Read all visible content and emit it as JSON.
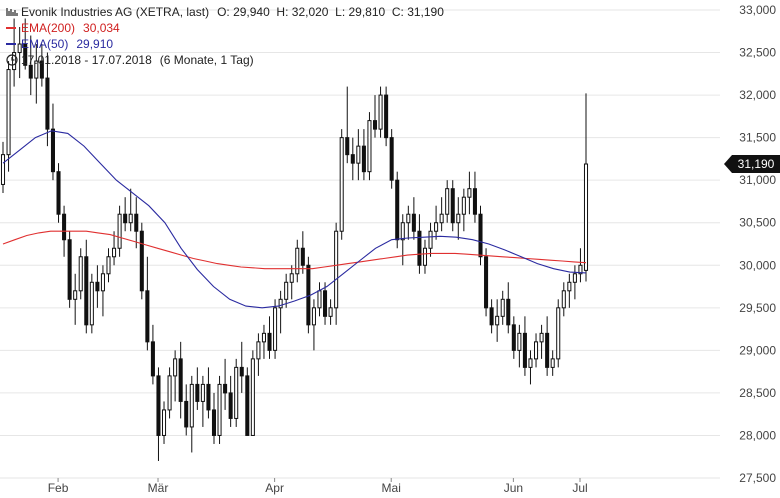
{
  "header": {
    "title": "Evonik Industries AG (XETRA, last)",
    "ohlc": "O: 29,940  H: 32,020  L: 29,810  C: 31,190",
    "ema200_label": "EMA(200)",
    "ema200_value": "30,034",
    "ema50_label": "EMA(50)",
    "ema50_value": "29,910",
    "period": "17.01.2018 - 17.07.2018",
    "period_note": "(6 Monate, 1 Tag)"
  },
  "colors": {
    "ema200": "#e03030",
    "ema50": "#2a2aa0",
    "candle": "#111111",
    "grid": "#e6e6e6",
    "price_badge": "#111111"
  },
  "chart_data": {
    "type": "candlestick",
    "title": "Evonik Industries AG (XETRA, last)",
    "y_ticks": [
      "27,500",
      "28,000",
      "28,500",
      "29,000",
      "29,500",
      "30,000",
      "30,500",
      "31,000",
      "31,500",
      "32,000",
      "32,500",
      "33,000"
    ],
    "x_ticks": [
      "Feb",
      "Mär",
      "Apr",
      "Mai",
      "Jun",
      "Jul"
    ],
    "ylim": [
      27.5,
      33.0
    ],
    "last_price_label": "31,190",
    "last_price": 31.19,
    "candles": [
      [
        30.95,
        31.45,
        30.85,
        31.3
      ],
      [
        31.3,
        32.4,
        31.1,
        32.3
      ],
      [
        32.3,
        32.9,
        32.1,
        32.5
      ],
      [
        32.5,
        32.8,
        32.2,
        32.6
      ],
      [
        32.6,
        32.9,
        32.3,
        32.35
      ],
      [
        32.35,
        32.7,
        32.0,
        32.2
      ],
      [
        32.2,
        32.6,
        31.9,
        32.4
      ],
      [
        32.4,
        32.6,
        32.1,
        32.2
      ],
      [
        32.2,
        32.5,
        31.4,
        31.6
      ],
      [
        31.6,
        31.9,
        31.0,
        31.1
      ],
      [
        31.1,
        31.2,
        30.5,
        30.6
      ],
      [
        30.6,
        30.7,
        30.1,
        30.3
      ],
      [
        30.3,
        30.4,
        29.5,
        29.6
      ],
      [
        29.6,
        29.9,
        29.3,
        29.7
      ],
      [
        29.7,
        30.2,
        29.6,
        30.1
      ],
      [
        30.1,
        30.3,
        29.2,
        29.3
      ],
      [
        29.3,
        29.9,
        29.2,
        29.8
      ],
      [
        29.8,
        30.0,
        29.5,
        29.7
      ],
      [
        29.7,
        30.0,
        29.4,
        29.9
      ],
      [
        29.9,
        30.2,
        29.8,
        30.1
      ],
      [
        30.1,
        30.4,
        30.0,
        30.2
      ],
      [
        30.2,
        30.7,
        30.1,
        30.6
      ],
      [
        30.6,
        30.8,
        30.4,
        30.5
      ],
      [
        30.5,
        30.9,
        30.4,
        30.6
      ],
      [
        30.6,
        30.8,
        30.2,
        30.4
      ],
      [
        30.4,
        30.5,
        29.6,
        29.7
      ],
      [
        29.7,
        30.1,
        29.0,
        29.1
      ],
      [
        29.1,
        29.3,
        28.6,
        28.7
      ],
      [
        28.7,
        28.8,
        27.7,
        28.0
      ],
      [
        28.0,
        28.4,
        27.9,
        28.3
      ],
      [
        28.3,
        28.8,
        28.2,
        28.7
      ],
      [
        28.7,
        29.0,
        28.4,
        28.9
      ],
      [
        28.9,
        29.1,
        28.2,
        28.4
      ],
      [
        28.4,
        28.6,
        28.0,
        28.1
      ],
      [
        28.1,
        28.7,
        27.8,
        28.6
      ],
      [
        28.6,
        28.8,
        28.3,
        28.4
      ],
      [
        28.4,
        28.7,
        28.1,
        28.6
      ],
      [
        28.6,
        28.8,
        28.2,
        28.3
      ],
      [
        28.3,
        28.5,
        27.9,
        28.0
      ],
      [
        28.0,
        28.7,
        27.9,
        28.6
      ],
      [
        28.6,
        28.9,
        28.3,
        28.5
      ],
      [
        28.5,
        28.7,
        28.1,
        28.2
      ],
      [
        28.2,
        28.9,
        28.1,
        28.8
      ],
      [
        28.8,
        29.1,
        28.5,
        28.7
      ],
      [
        28.7,
        28.8,
        28.0,
        28.0
      ],
      [
        28.0,
        29.0,
        28.0,
        28.9
      ],
      [
        28.9,
        29.2,
        28.7,
        29.1
      ],
      [
        29.1,
        29.3,
        28.9,
        29.2
      ],
      [
        29.2,
        29.4,
        28.9,
        29.0
      ],
      [
        29.0,
        29.6,
        28.9,
        29.5
      ],
      [
        29.5,
        29.7,
        29.2,
        29.6
      ],
      [
        29.6,
        29.9,
        29.5,
        29.8
      ],
      [
        29.8,
        30.0,
        29.6,
        29.9
      ],
      [
        29.9,
        30.3,
        29.8,
        30.2
      ],
      [
        30.2,
        30.4,
        29.9,
        30.0
      ],
      [
        30.0,
        30.1,
        29.2,
        29.3
      ],
      [
        29.3,
        29.6,
        29.0,
        29.5
      ],
      [
        29.5,
        29.8,
        29.4,
        29.7
      ],
      [
        29.7,
        29.8,
        29.3,
        29.4
      ],
      [
        29.4,
        29.6,
        29.3,
        29.5
      ],
      [
        29.5,
        30.5,
        29.3,
        30.4
      ],
      [
        30.4,
        31.6,
        30.3,
        31.5
      ],
      [
        31.5,
        32.1,
        31.2,
        31.3
      ],
      [
        31.3,
        31.5,
        31.0,
        31.2
      ],
      [
        31.2,
        31.6,
        31.0,
        31.4
      ],
      [
        31.4,
        31.6,
        31.0,
        31.1
      ],
      [
        31.1,
        31.8,
        31.0,
        31.7
      ],
      [
        31.7,
        32.0,
        31.5,
        31.6
      ],
      [
        31.6,
        32.1,
        31.5,
        32.0
      ],
      [
        32.0,
        32.1,
        31.4,
        31.5
      ],
      [
        31.5,
        31.6,
        30.9,
        31.0
      ],
      [
        31.0,
        31.1,
        30.2,
        30.3
      ],
      [
        30.3,
        30.6,
        30.0,
        30.5
      ],
      [
        30.5,
        30.7,
        30.3,
        30.6
      ],
      [
        30.6,
        30.8,
        30.3,
        30.4
      ],
      [
        30.4,
        30.6,
        29.9,
        30.0
      ],
      [
        30.0,
        30.3,
        29.9,
        30.2
      ],
      [
        30.2,
        30.5,
        30.1,
        30.4
      ],
      [
        30.4,
        30.7,
        30.3,
        30.5
      ],
      [
        30.5,
        30.8,
        30.4,
        30.6
      ],
      [
        30.6,
        31.0,
        30.5,
        30.9
      ],
      [
        30.9,
        31.0,
        30.4,
        30.5
      ],
      [
        30.5,
        30.8,
        30.3,
        30.6
      ],
      [
        30.6,
        30.9,
        30.4,
        30.8
      ],
      [
        30.8,
        31.1,
        30.6,
        30.9
      ],
      [
        30.9,
        31.1,
        30.5,
        30.6
      ],
      [
        30.6,
        30.7,
        30.0,
        30.1
      ],
      [
        30.1,
        30.2,
        29.4,
        29.5
      ],
      [
        29.5,
        29.6,
        29.2,
        29.3
      ],
      [
        29.3,
        29.6,
        29.1,
        29.4
      ],
      [
        29.4,
        29.7,
        29.3,
        29.6
      ],
      [
        29.6,
        29.8,
        29.2,
        29.3
      ],
      [
        29.3,
        29.4,
        28.9,
        29.0
      ],
      [
        29.0,
        29.3,
        28.8,
        29.2
      ],
      [
        29.2,
        29.4,
        28.7,
        28.8
      ],
      [
        28.8,
        29.0,
        28.6,
        28.9
      ],
      [
        28.9,
        29.2,
        28.8,
        29.1
      ],
      [
        29.1,
        29.3,
        28.9,
        29.2
      ],
      [
        29.2,
        29.4,
        28.7,
        28.8
      ],
      [
        28.8,
        29.0,
        28.7,
        28.9
      ],
      [
        28.9,
        29.6,
        28.8,
        29.5
      ],
      [
        29.5,
        29.8,
        29.4,
        29.7
      ],
      [
        29.7,
        29.9,
        29.5,
        29.8
      ],
      [
        29.8,
        30.0,
        29.6,
        29.9
      ],
      [
        29.9,
        30.2,
        29.8,
        30.0
      ],
      [
        29.94,
        32.02,
        29.81,
        31.19
      ]
    ],
    "series": [
      {
        "name": "EMA(200)",
        "values": [
          30.25,
          30.3,
          30.35,
          30.38,
          30.4,
          30.4,
          30.4,
          30.4,
          30.38,
          30.36,
          30.32,
          30.28,
          30.24,
          30.2,
          30.16,
          30.12,
          30.08,
          30.05,
          30.02,
          30.0,
          29.98,
          29.97,
          29.96,
          29.96,
          29.96,
          29.96,
          29.96,
          29.98,
          30.0,
          30.02,
          30.04,
          30.06,
          30.08,
          30.1,
          30.12,
          30.13,
          30.14,
          30.14,
          30.14,
          30.13,
          30.12,
          30.11,
          30.1,
          30.09,
          30.08,
          30.07,
          30.06,
          30.05,
          30.04,
          30.03
        ]
      },
      {
        "name": "EMA(50)",
        "values": [
          31.2,
          31.35,
          31.5,
          31.58,
          31.55,
          31.4,
          31.2,
          31.0,
          30.85,
          30.7,
          30.5,
          30.2,
          29.95,
          29.75,
          29.6,
          29.52,
          29.5,
          29.52,
          29.58,
          29.65,
          29.75,
          29.9,
          30.05,
          30.2,
          30.3,
          30.32,
          30.33,
          30.34,
          30.33,
          30.3,
          30.25,
          30.18,
          30.1,
          30.02,
          29.96,
          29.92,
          29.91
        ]
      }
    ]
  }
}
